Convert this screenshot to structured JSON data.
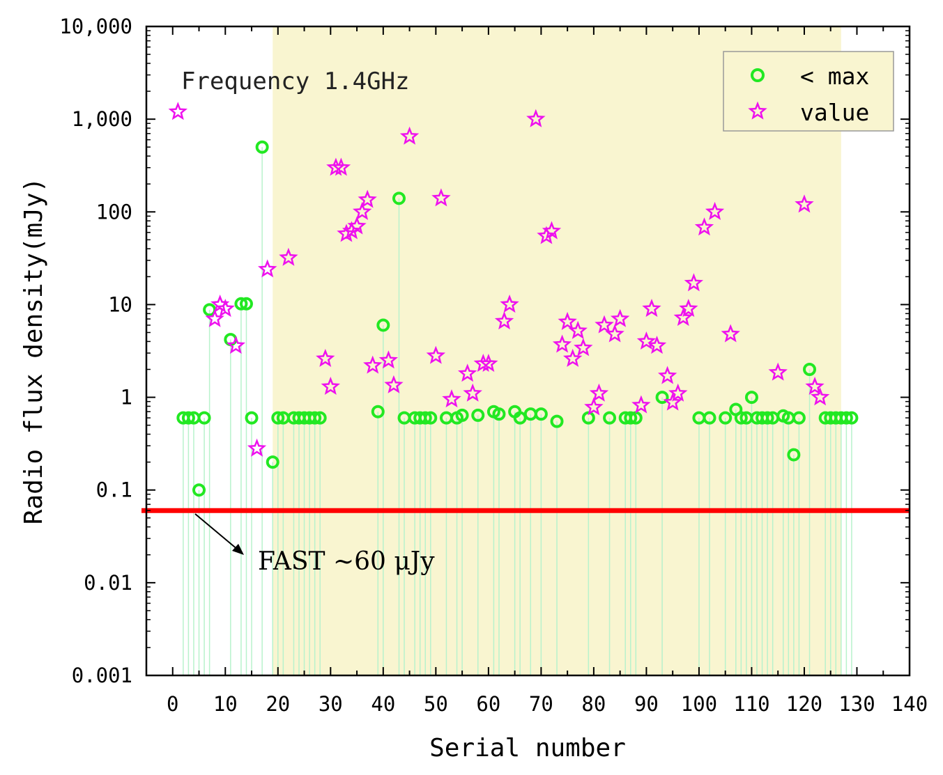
{
  "chart_data": {
    "type": "scatter",
    "title": "",
    "annotation": "Frequency 1.4GHz",
    "xlabel": "Serial number",
    "ylabel": "Radio flux density(mJy)",
    "xlim": [
      -5,
      140
    ],
    "ylim": [
      0.001,
      10000
    ],
    "yscale": "log",
    "x_ticks": [
      0,
      10,
      20,
      30,
      40,
      50,
      60,
      70,
      80,
      90,
      100,
      110,
      120,
      130,
      140
    ],
    "y_ticks": [
      {
        "value": 10000,
        "label": "10,000"
      },
      {
        "value": 1000,
        "label": "1,000"
      },
      {
        "value": 100,
        "label": "100"
      },
      {
        "value": 10,
        "label": "10"
      },
      {
        "value": 1,
        "label": "1"
      },
      {
        "value": 0.1,
        "label": "0.1"
      },
      {
        "value": 0.01,
        "label": "0.01"
      },
      {
        "value": 0.001,
        "label": "0.001"
      }
    ],
    "shaded_region": {
      "x_start": 19,
      "x_end": 127,
      "color": "#f9f5d0"
    },
    "threshold": {
      "value": 0.06,
      "color": "#ff0000",
      "label": "FAST ~60 μJy"
    },
    "legend": {
      "position": "top-right",
      "entries": [
        "< max",
        "value"
      ]
    },
    "colors": {
      "max": "#22e822",
      "value": "#ee11ee",
      "stem": "#b8f2cc"
    },
    "series": [
      {
        "name": "< max",
        "marker": "circle",
        "points": [
          [
            2,
            0.6
          ],
          [
            3,
            0.6
          ],
          [
            4,
            0.6
          ],
          [
            5,
            0.1
          ],
          [
            6,
            0.6
          ],
          [
            7,
            8.8
          ],
          [
            11,
            4.2
          ],
          [
            13,
            10.2
          ],
          [
            14,
            10.2
          ],
          [
            15,
            0.6
          ],
          [
            17,
            500
          ],
          [
            19,
            0.2
          ],
          [
            20,
            0.6
          ],
          [
            21,
            0.6
          ],
          [
            23,
            0.6
          ],
          [
            24,
            0.6
          ],
          [
            25,
            0.6
          ],
          [
            26,
            0.6
          ],
          [
            27,
            0.6
          ],
          [
            28,
            0.6
          ],
          [
            39,
            0.7
          ],
          [
            40,
            6.0
          ],
          [
            43,
            140
          ],
          [
            44,
            0.6
          ],
          [
            46,
            0.6
          ],
          [
            47,
            0.6
          ],
          [
            48,
            0.6
          ],
          [
            49,
            0.6
          ],
          [
            52,
            0.6
          ],
          [
            54,
            0.6
          ],
          [
            55,
            0.64
          ],
          [
            58,
            0.64
          ],
          [
            61,
            0.7
          ],
          [
            62,
            0.66
          ],
          [
            65,
            0.7
          ],
          [
            66,
            0.6
          ],
          [
            68,
            0.66
          ],
          [
            70,
            0.66
          ],
          [
            73,
            0.55
          ],
          [
            79,
            0.6
          ],
          [
            83,
            0.6
          ],
          [
            86,
            0.6
          ],
          [
            87,
            0.6
          ],
          [
            88,
            0.6
          ],
          [
            93,
            1.0
          ],
          [
            100,
            0.6
          ],
          [
            102,
            0.6
          ],
          [
            105,
            0.6
          ],
          [
            107,
            0.74
          ],
          [
            108,
            0.6
          ],
          [
            109,
            0.6
          ],
          [
            110,
            1.0
          ],
          [
            111,
            0.6
          ],
          [
            112,
            0.6
          ],
          [
            113,
            0.6
          ],
          [
            114,
            0.6
          ],
          [
            116,
            0.63
          ],
          [
            117,
            0.6
          ],
          [
            118,
            0.24
          ],
          [
            119,
            0.6
          ],
          [
            121,
            2.0
          ],
          [
            124,
            0.6
          ],
          [
            125,
            0.6
          ],
          [
            126,
            0.6
          ],
          [
            127,
            0.6
          ],
          [
            128,
            0.6
          ],
          [
            129,
            0.6
          ]
        ]
      },
      {
        "name": "value",
        "marker": "star",
        "points": [
          [
            1,
            1200
          ],
          [
            8,
            7.0
          ],
          [
            9,
            10.0
          ],
          [
            10,
            9.0
          ],
          [
            12,
            3.6
          ],
          [
            16,
            0.28
          ],
          [
            18,
            24
          ],
          [
            22,
            32
          ],
          [
            29,
            2.6
          ],
          [
            30,
            1.3
          ],
          [
            31,
            300
          ],
          [
            32,
            300
          ],
          [
            33,
            58
          ],
          [
            34,
            62
          ],
          [
            35,
            70
          ],
          [
            36,
            100
          ],
          [
            37,
            135
          ],
          [
            38,
            2.2
          ],
          [
            41,
            2.5
          ],
          [
            42,
            1.35
          ],
          [
            45,
            650
          ],
          [
            50,
            2.8
          ],
          [
            51,
            140
          ],
          [
            53,
            0.95
          ],
          [
            56,
            1.8
          ],
          [
            57,
            1.1
          ],
          [
            59,
            2.3
          ],
          [
            60,
            2.3
          ],
          [
            63,
            6.6
          ],
          [
            64,
            10.0
          ],
          [
            69,
            1000
          ],
          [
            71,
            55
          ],
          [
            72,
            62
          ],
          [
            74,
            3.7
          ],
          [
            75,
            6.5
          ],
          [
            76,
            2.6
          ],
          [
            77,
            5.2
          ],
          [
            78,
            3.4
          ],
          [
            80,
            0.78
          ],
          [
            81,
            1.1
          ],
          [
            82,
            6.0
          ],
          [
            84,
            4.8
          ],
          [
            85,
            7.0
          ],
          [
            89,
            0.82
          ],
          [
            90,
            4.0
          ],
          [
            91,
            9.0
          ],
          [
            92,
            3.6
          ],
          [
            94,
            1.7
          ],
          [
            95,
            0.88
          ],
          [
            96,
            1.1
          ],
          [
            97,
            7.2
          ],
          [
            98,
            9.0
          ],
          [
            99,
            17
          ],
          [
            101,
            68
          ],
          [
            103,
            100
          ],
          [
            106,
            4.8
          ],
          [
            115,
            1.85
          ],
          [
            120,
            120
          ],
          [
            122,
            1.3
          ],
          [
            123,
            1.0
          ]
        ]
      }
    ]
  }
}
